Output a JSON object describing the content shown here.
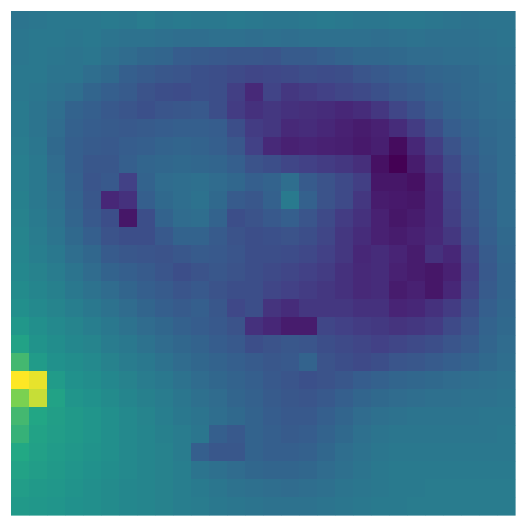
{
  "chart_data": {
    "type": "heatmap",
    "rows": 28,
    "cols": 28,
    "colormap": "viridis",
    "vmin": 0,
    "vmax": 1,
    "background": "#ffffff",
    "values": [
      [
        0.48,
        0.49,
        0.5,
        0.5,
        0.5,
        0.51,
        0.5,
        0.52,
        0.5,
        0.51,
        0.5,
        0.5,
        0.51,
        0.5,
        0.49,
        0.49,
        0.5,
        0.51,
        0.5,
        0.49,
        0.49,
        0.5,
        0.5,
        0.49,
        0.48,
        0.47,
        0.48,
        0.48
      ],
      [
        0.49,
        0.5,
        0.5,
        0.49,
        0.5,
        0.48,
        0.47,
        0.47,
        0.46,
        0.45,
        0.45,
        0.46,
        0.46,
        0.45,
        0.46,
        0.45,
        0.46,
        0.46,
        0.46,
        0.46,
        0.45,
        0.46,
        0.47,
        0.46,
        0.46,
        0.46,
        0.47,
        0.48
      ],
      [
        0.49,
        0.5,
        0.49,
        0.48,
        0.49,
        0.46,
        0.44,
        0.42,
        0.41,
        0.37,
        0.36,
        0.35,
        0.34,
        0.34,
        0.33,
        0.36,
        0.36,
        0.38,
        0.4,
        0.42,
        0.42,
        0.43,
        0.44,
        0.44,
        0.45,
        0.45,
        0.46,
        0.47
      ],
      [
        0.5,
        0.5,
        0.48,
        0.48,
        0.45,
        0.43,
        0.38,
        0.36,
        0.34,
        0.33,
        0.31,
        0.3,
        0.28,
        0.26,
        0.27,
        0.28,
        0.3,
        0.29,
        0.3,
        0.33,
        0.35,
        0.37,
        0.39,
        0.41,
        0.42,
        0.43,
        0.45,
        0.46
      ],
      [
        0.5,
        0.49,
        0.47,
        0.45,
        0.41,
        0.38,
        0.36,
        0.32,
        0.3,
        0.29,
        0.31,
        0.3,
        0.23,
        0.15,
        0.25,
        0.2,
        0.22,
        0.24,
        0.26,
        0.28,
        0.31,
        0.34,
        0.36,
        0.39,
        0.41,
        0.43,
        0.44,
        0.46
      ],
      [
        0.51,
        0.48,
        0.45,
        0.4,
        0.38,
        0.35,
        0.33,
        0.31,
        0.33,
        0.34,
        0.35,
        0.3,
        0.22,
        0.18,
        0.2,
        0.18,
        0.17,
        0.16,
        0.14,
        0.16,
        0.2,
        0.26,
        0.31,
        0.36,
        0.4,
        0.42,
        0.44,
        0.45
      ],
      [
        0.51,
        0.48,
        0.44,
        0.39,
        0.37,
        0.36,
        0.35,
        0.36,
        0.37,
        0.38,
        0.38,
        0.37,
        0.3,
        0.22,
        0.2,
        0.15,
        0.16,
        0.14,
        0.12,
        0.1,
        0.12,
        0.16,
        0.22,
        0.3,
        0.37,
        0.4,
        0.43,
        0.44
      ],
      [
        0.52,
        0.49,
        0.43,
        0.38,
        0.36,
        0.35,
        0.37,
        0.38,
        0.4,
        0.41,
        0.4,
        0.38,
        0.34,
        0.24,
        0.15,
        0.12,
        0.13,
        0.12,
        0.11,
        0.09,
        0.11,
        0.04,
        0.14,
        0.23,
        0.32,
        0.38,
        0.42,
        0.44
      ],
      [
        0.53,
        0.5,
        0.44,
        0.38,
        0.34,
        0.34,
        0.38,
        0.41,
        0.42,
        0.43,
        0.42,
        0.41,
        0.38,
        0.32,
        0.3,
        0.26,
        0.24,
        0.22,
        0.2,
        0.17,
        0.06,
        0.0,
        0.1,
        0.19,
        0.28,
        0.36,
        0.41,
        0.44
      ],
      [
        0.53,
        0.5,
        0.45,
        0.39,
        0.33,
        0.35,
        0.24,
        0.4,
        0.44,
        0.45,
        0.46,
        0.44,
        0.42,
        0.38,
        0.4,
        0.45,
        0.36,
        0.32,
        0.28,
        0.23,
        0.08,
        0.08,
        0.06,
        0.15,
        0.26,
        0.34,
        0.4,
        0.44
      ],
      [
        0.54,
        0.5,
        0.46,
        0.4,
        0.34,
        0.14,
        0.18,
        0.38,
        0.43,
        0.45,
        0.47,
        0.43,
        0.36,
        0.34,
        0.39,
        0.51,
        0.39,
        0.32,
        0.28,
        0.2,
        0.1,
        0.09,
        0.08,
        0.14,
        0.24,
        0.33,
        0.4,
        0.44
      ],
      [
        0.55,
        0.51,
        0.47,
        0.41,
        0.35,
        0.3,
        0.08,
        0.3,
        0.4,
        0.44,
        0.45,
        0.4,
        0.3,
        0.32,
        0.35,
        0.38,
        0.33,
        0.28,
        0.22,
        0.18,
        0.12,
        0.08,
        0.1,
        0.14,
        0.23,
        0.32,
        0.39,
        0.44
      ],
      [
        0.56,
        0.52,
        0.48,
        0.43,
        0.38,
        0.32,
        0.3,
        0.3,
        0.35,
        0.4,
        0.4,
        0.36,
        0.32,
        0.3,
        0.31,
        0.32,
        0.3,
        0.26,
        0.2,
        0.16,
        0.12,
        0.1,
        0.12,
        0.15,
        0.2,
        0.3,
        0.38,
        0.43
      ],
      [
        0.57,
        0.53,
        0.5,
        0.45,
        0.42,
        0.36,
        0.34,
        0.33,
        0.32,
        0.34,
        0.36,
        0.35,
        0.33,
        0.3,
        0.3,
        0.29,
        0.27,
        0.24,
        0.2,
        0.14,
        0.16,
        0.13,
        0.1,
        0.18,
        0.14,
        0.26,
        0.36,
        0.42
      ],
      [
        0.58,
        0.55,
        0.52,
        0.48,
        0.44,
        0.4,
        0.38,
        0.36,
        0.33,
        0.3,
        0.32,
        0.34,
        0.32,
        0.3,
        0.28,
        0.26,
        0.24,
        0.22,
        0.18,
        0.15,
        0.16,
        0.12,
        0.1,
        0.08,
        0.12,
        0.24,
        0.35,
        0.41
      ],
      [
        0.6,
        0.57,
        0.54,
        0.5,
        0.47,
        0.44,
        0.41,
        0.38,
        0.36,
        0.33,
        0.35,
        0.32,
        0.3,
        0.3,
        0.26,
        0.24,
        0.22,
        0.2,
        0.18,
        0.15,
        0.16,
        0.1,
        0.12,
        0.08,
        0.14,
        0.26,
        0.36,
        0.41
      ],
      [
        0.62,
        0.59,
        0.56,
        0.53,
        0.5,
        0.47,
        0.44,
        0.41,
        0.38,
        0.36,
        0.38,
        0.34,
        0.27,
        0.3,
        0.19,
        0.16,
        0.2,
        0.2,
        0.2,
        0.18,
        0.18,
        0.13,
        0.14,
        0.18,
        0.22,
        0.3,
        0.38,
        0.42
      ],
      [
        0.66,
        0.62,
        0.59,
        0.56,
        0.53,
        0.5,
        0.47,
        0.44,
        0.42,
        0.39,
        0.37,
        0.35,
        0.32,
        0.18,
        0.14,
        0.1,
        0.1,
        0.26,
        0.24,
        0.22,
        0.21,
        0.19,
        0.2,
        0.22,
        0.28,
        0.33,
        0.4,
        0.43
      ],
      [
        0.72,
        0.64,
        0.61,
        0.58,
        0.56,
        0.52,
        0.5,
        0.47,
        0.44,
        0.42,
        0.4,
        0.37,
        0.35,
        0.3,
        0.32,
        0.34,
        0.33,
        0.3,
        0.28,
        0.26,
        0.24,
        0.26,
        0.28,
        0.3,
        0.33,
        0.36,
        0.41,
        0.44
      ],
      [
        0.8,
        0.68,
        0.63,
        0.61,
        0.59,
        0.55,
        0.52,
        0.5,
        0.47,
        0.44,
        0.42,
        0.4,
        0.38,
        0.36,
        0.34,
        0.35,
        0.4,
        0.32,
        0.3,
        0.28,
        0.3,
        0.33,
        0.34,
        0.36,
        0.38,
        0.4,
        0.43,
        0.45
      ],
      [
        1.0,
        0.98,
        0.68,
        0.63,
        0.61,
        0.58,
        0.55,
        0.52,
        0.5,
        0.47,
        0.44,
        0.42,
        0.4,
        0.38,
        0.35,
        0.33,
        0.31,
        0.32,
        0.34,
        0.37,
        0.39,
        0.41,
        0.42,
        0.43,
        0.44,
        0.45,
        0.46,
        0.47
      ],
      [
        0.88,
        0.95,
        0.72,
        0.65,
        0.63,
        0.6,
        0.57,
        0.54,
        0.52,
        0.49,
        0.46,
        0.44,
        0.41,
        0.39,
        0.36,
        0.34,
        0.33,
        0.35,
        0.38,
        0.41,
        0.43,
        0.44,
        0.45,
        0.46,
        0.46,
        0.47,
        0.47,
        0.48
      ],
      [
        0.8,
        0.74,
        0.7,
        0.67,
        0.65,
        0.62,
        0.59,
        0.56,
        0.53,
        0.5,
        0.48,
        0.45,
        0.43,
        0.4,
        0.37,
        0.35,
        0.35,
        0.38,
        0.41,
        0.44,
        0.46,
        0.47,
        0.48,
        0.48,
        0.48,
        0.48,
        0.49,
        0.49
      ],
      [
        0.78,
        0.72,
        0.69,
        0.67,
        0.65,
        0.62,
        0.59,
        0.57,
        0.54,
        0.52,
        0.49,
        0.38,
        0.35,
        0.4,
        0.38,
        0.36,
        0.37,
        0.4,
        0.43,
        0.46,
        0.48,
        0.49,
        0.49,
        0.49,
        0.49,
        0.49,
        0.49,
        0.5
      ],
      [
        0.75,
        0.71,
        0.68,
        0.66,
        0.64,
        0.62,
        0.59,
        0.57,
        0.55,
        0.52,
        0.38,
        0.34,
        0.34,
        0.4,
        0.38,
        0.38,
        0.39,
        0.42,
        0.45,
        0.47,
        0.49,
        0.5,
        0.5,
        0.5,
        0.5,
        0.5,
        0.5,
        0.5
      ],
      [
        0.72,
        0.69,
        0.67,
        0.65,
        0.63,
        0.61,
        0.59,
        0.57,
        0.55,
        0.53,
        0.48,
        0.46,
        0.44,
        0.42,
        0.41,
        0.41,
        0.42,
        0.44,
        0.46,
        0.48,
        0.5,
        0.51,
        0.51,
        0.51,
        0.51,
        0.51,
        0.51,
        0.51
      ],
      [
        0.69,
        0.67,
        0.66,
        0.64,
        0.62,
        0.6,
        0.58,
        0.57,
        0.55,
        0.53,
        0.51,
        0.49,
        0.47,
        0.46,
        0.45,
        0.44,
        0.45,
        0.46,
        0.48,
        0.49,
        0.5,
        0.51,
        0.51,
        0.52,
        0.52,
        0.52,
        0.52,
        0.52
      ],
      [
        0.67,
        0.66,
        0.65,
        0.63,
        0.62,
        0.6,
        0.58,
        0.57,
        0.55,
        0.53,
        0.52,
        0.5,
        0.49,
        0.48,
        0.47,
        0.47,
        0.47,
        0.48,
        0.49,
        0.5,
        0.51,
        0.51,
        0.52,
        0.52,
        0.52,
        0.52,
        0.52,
        0.52
      ]
    ]
  }
}
